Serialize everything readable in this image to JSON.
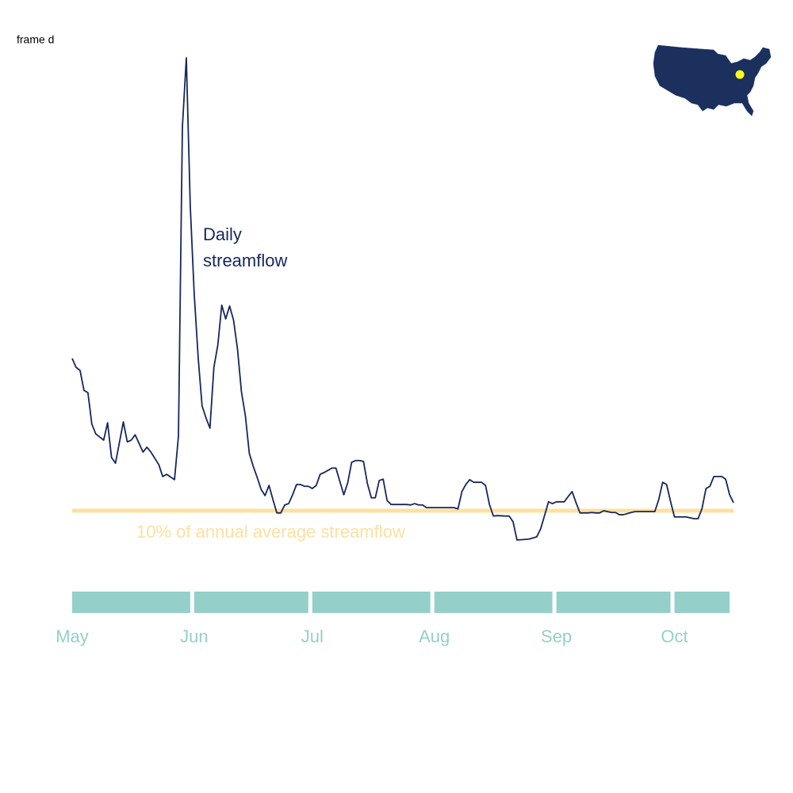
{
  "chart_data": {
    "type": "line",
    "title": "frame d",
    "series": [
      {
        "name": "Daily streamflow",
        "color": "#16275c",
        "x": [
          0,
          1,
          2,
          3,
          4,
          5,
          6,
          8,
          9,
          10,
          11,
          13,
          14,
          15,
          16,
          18,
          19,
          20,
          22,
          23,
          24,
          26,
          27,
          28,
          29,
          30,
          31,
          32,
          33,
          34,
          35,
          36,
          37,
          38,
          39,
          40,
          41,
          42,
          43,
          44,
          45,
          46,
          47,
          48,
          49,
          50,
          51,
          52,
          53,
          54,
          55,
          56,
          57,
          58,
          59,
          60,
          61,
          62,
          63,
          64,
          65,
          66,
          67,
          68,
          69,
          70,
          71,
          72,
          73,
          74,
          75,
          76,
          77,
          78,
          79,
          80,
          81,
          85,
          86,
          87,
          88,
          89,
          90,
          97,
          98,
          99,
          100,
          101,
          102,
          104,
          105,
          106,
          107,
          108,
          110,
          111,
          112,
          113,
          116,
          118,
          119,
          120,
          121,
          122,
          123,
          125,
          126,
          127,
          128,
          129,
          131,
          132,
          133,
          134,
          135,
          137,
          138,
          139,
          140,
          142,
          143,
          148,
          149,
          150,
          151,
          152,
          153,
          156,
          158,
          159,
          160,
          161,
          162,
          163,
          165,
          166,
          167,
          168
        ],
        "values": [
          44.3,
          42.3,
          41.6,
          37.1,
          36.6,
          29.5,
          27.3,
          25.9,
          29.8,
          22.0,
          20.7,
          30.0,
          25.5,
          25.9,
          27.1,
          23.2,
          24.3,
          23.2,
          20.4,
          17.7,
          18.2,
          17.0,
          26.8,
          96.4,
          112.0,
          78.6,
          58.9,
          44.6,
          33.6,
          30.9,
          28.6,
          42.3,
          47.3,
          56.3,
          53.2,
          56.1,
          52.9,
          46.4,
          36.8,
          31.4,
          22.9,
          20.0,
          17.5,
          14.8,
          13.4,
          15.7,
          12.5,
          9.5,
          9.5,
          11.3,
          11.6,
          13.6,
          15.9,
          15.9,
          15.5,
          15.5,
          15.0,
          15.7,
          18.2,
          18.6,
          19.1,
          19.6,
          19.6,
          16.6,
          13.6,
          16.3,
          20.9,
          21.3,
          21.3,
          21.1,
          16.1,
          12.9,
          12.9,
          16.8,
          17.1,
          12.3,
          11.4,
          11.4,
          11.3,
          11.6,
          11.3,
          11.3,
          10.7,
          10.7,
          10.4,
          14.3,
          15.9,
          17.0,
          16.4,
          16.4,
          15.7,
          11.4,
          8.8,
          8.9,
          8.8,
          8.8,
          7.5,
          3.4,
          3.6,
          4.1,
          5.9,
          8.9,
          12.0,
          11.6,
          12.0,
          12.0,
          13.2,
          14.3,
          11.8,
          9.5,
          9.5,
          9.6,
          9.5,
          9.5,
          10.0,
          9.6,
          9.6,
          9.1,
          9.1,
          9.6,
          9.8,
          9.8,
          12.5,
          16.4,
          15.9,
          12.1,
          8.6,
          8.6,
          8.2,
          8.2,
          10.5,
          15.0,
          15.5,
          17.7,
          17.7,
          17.1,
          13.6,
          11.8
        ]
      }
    ],
    "threshold": {
      "value": 10,
      "label": "10% of annual average streamflow",
      "color": "#fde0a0"
    },
    "xlim": [
      0,
      168
    ],
    "xticks": [
      {
        "value": 0,
        "label": "May"
      },
      {
        "value": 31,
        "label": "Jun"
      },
      {
        "value": 61,
        "label": "Jul"
      },
      {
        "value": 92,
        "label": "Aug"
      },
      {
        "value": 123,
        "label": "Sep"
      },
      {
        "value": 153,
        "label": "Oct"
      }
    ],
    "band_color": "#94d0c9"
  }
}
